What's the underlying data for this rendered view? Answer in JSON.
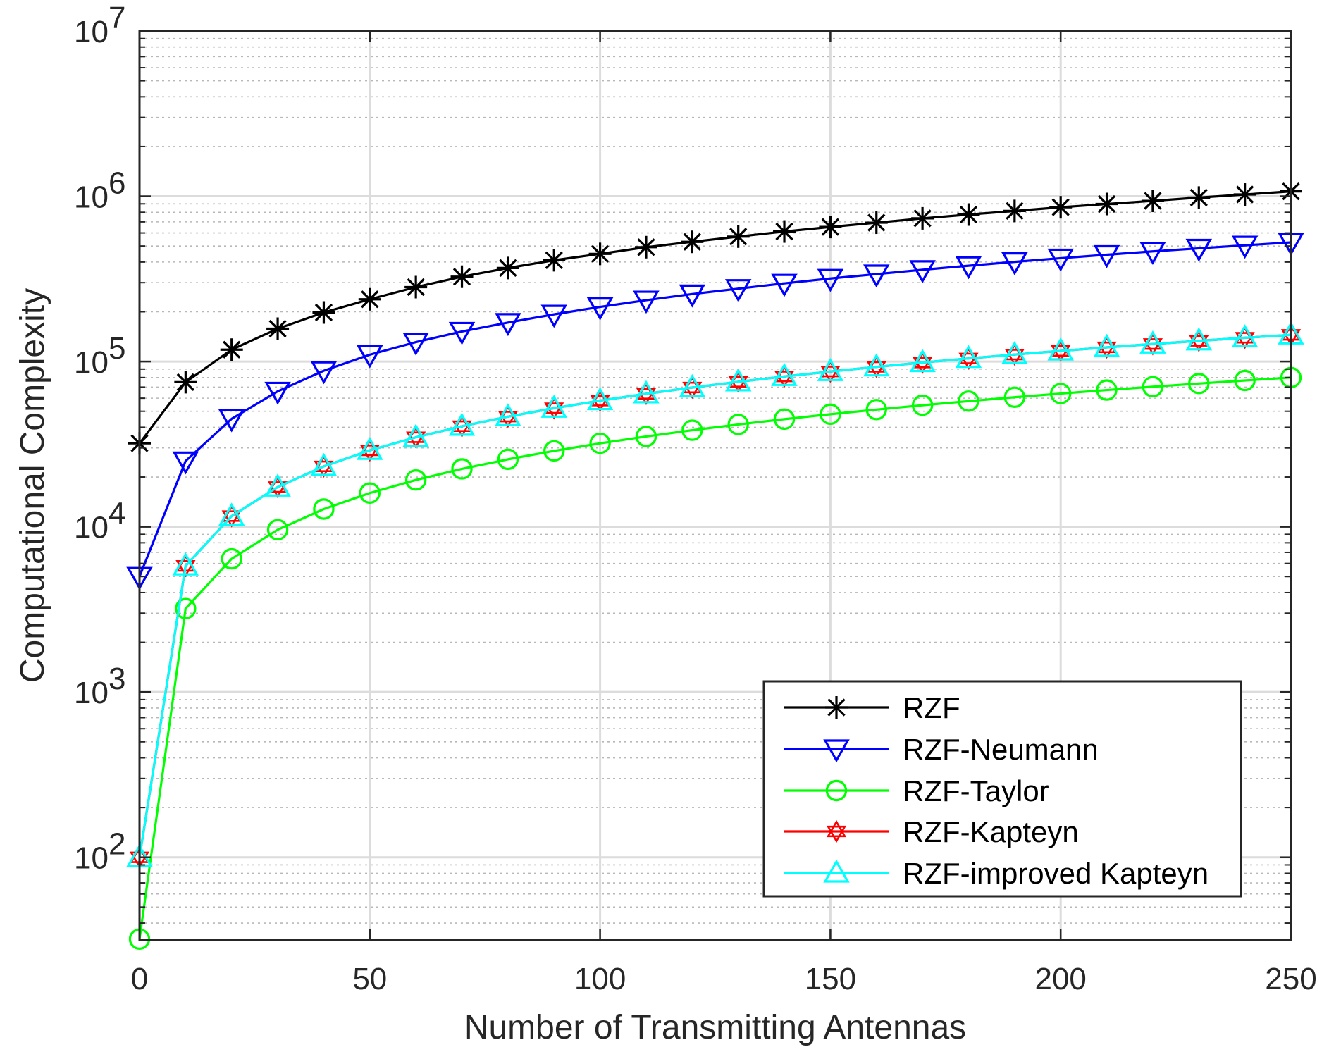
{
  "chart_data": {
    "type": "line",
    "xlabel": "Number of Transmitting Antennas",
    "ylabel": "Computational Complexity",
    "xlim": [
      0,
      250
    ],
    "ylim_log10": [
      1.5,
      7
    ],
    "y_scale": "log",
    "x_ticks": [
      "0",
      "50",
      "100",
      "150",
      "200",
      "250"
    ],
    "y_ticks": [
      {
        "base": "10",
        "exp": "2"
      },
      {
        "base": "10",
        "exp": "3"
      },
      {
        "base": "10",
        "exp": "4"
      },
      {
        "base": "10",
        "exp": "5"
      },
      {
        "base": "10",
        "exp": "6"
      },
      {
        "base": "10",
        "exp": "7"
      }
    ],
    "grid": true,
    "legend_position": "lower-right",
    "x": [
      0,
      10,
      20,
      30,
      40,
      50,
      60,
      70,
      80,
      90,
      100,
      110,
      120,
      130,
      140,
      150,
      160,
      170,
      180,
      190,
      200,
      210,
      220,
      230,
      240,
      250
    ],
    "series": [
      {
        "name": "RZF",
        "color": "#000000",
        "marker": "asterisk",
        "values": [
          32000,
          75000,
          118000,
          158000,
          198000,
          238000,
          282000,
          326000,
          368000,
          410000,
          448000,
          492000,
          530000,
          570000,
          612000,
          652000,
          692000,
          735000,
          775000,
          815000,
          858000,
          898000,
          938000,
          982000,
          1025000,
          1070000
        ]
      },
      {
        "name": "RZF-Neumann",
        "color": "#0000ff",
        "marker": "triangle-down",
        "values": [
          5000,
          25000,
          45000,
          66000,
          88000,
          110000,
          131000,
          152000,
          172000,
          193000,
          214000,
          235000,
          256000,
          276000,
          297000,
          318000,
          338000,
          359000,
          380000,
          401000,
          422000,
          443000,
          464000,
          484000,
          505000,
          526000
        ]
      },
      {
        "name": "RZF-Taylor",
        "color": "#00ff00",
        "marker": "circle",
        "values": [
          32,
          3200,
          6400,
          9600,
          12800,
          16000,
          19200,
          22400,
          25600,
          28800,
          32000,
          35200,
          38400,
          41600,
          44800,
          48000,
          51200,
          54400,
          57600,
          60800,
          64000,
          67200,
          70400,
          73600,
          76800,
          80000
        ]
      },
      {
        "name": "RZF-Kapteyn",
        "color": "#ff0000",
        "marker": "hexagram",
        "values": [
          100,
          5800,
          11600,
          17400,
          23200,
          29000,
          34800,
          40600,
          46400,
          52200,
          58000,
          63800,
          69600,
          75400,
          81200,
          87000,
          92800,
          98600,
          104400,
          110200,
          116000,
          121800,
          127600,
          133400,
          139200,
          145000
        ]
      },
      {
        "name": "RZF-improved Kapteyn",
        "color": "#00ffff",
        "marker": "triangle-up",
        "values": [
          100,
          5800,
          11600,
          17400,
          23200,
          29000,
          34800,
          40600,
          46400,
          52200,
          58000,
          63800,
          69600,
          75400,
          81200,
          87000,
          92800,
          98600,
          104400,
          110200,
          116000,
          121800,
          127600,
          133400,
          139200,
          145000
        ]
      }
    ]
  }
}
